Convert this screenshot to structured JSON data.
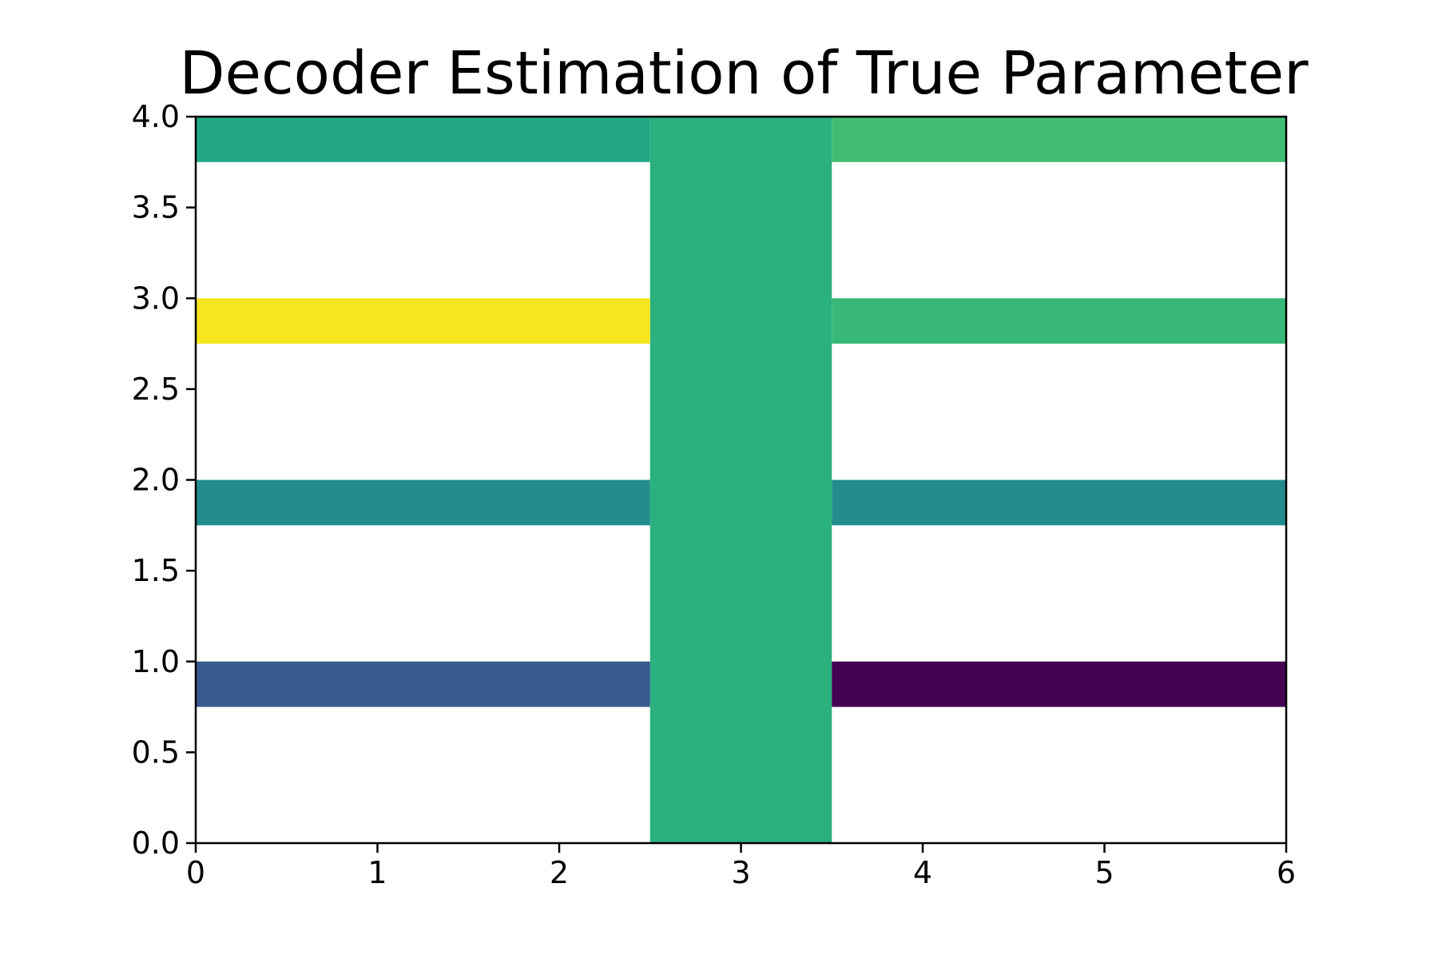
{
  "chart_data": {
    "type": "heatmap",
    "title": "Decoder Estimation of True Parameter",
    "xlabel": "",
    "ylabel": "",
    "xlim": [
      0,
      6
    ],
    "ylim": [
      0,
      4.0
    ],
    "x_ticks": [
      "0",
      "1",
      "2",
      "3",
      "4",
      "5",
      "6"
    ],
    "y_ticks": [
      "0.0",
      "0.5",
      "1.0",
      "1.5",
      "2.0",
      "2.5",
      "3.0",
      "3.5",
      "4.0"
    ],
    "grid": false,
    "legend": "none",
    "colormap": "viridis",
    "regions": [
      {
        "x": [
          2.5,
          3.5
        ],
        "y": [
          0.0,
          4.0
        ],
        "color": "#2bb07f"
      },
      {
        "x": [
          0,
          2.5
        ],
        "y": [
          3.75,
          4.0
        ],
        "color": "#22a884"
      },
      {
        "x": [
          3.5,
          6
        ],
        "y": [
          3.75,
          4.0
        ],
        "color": "#40bd72"
      },
      {
        "x": [
          0,
          2.5
        ],
        "y": [
          2.75,
          3.0
        ],
        "color": "#f5e61f"
      },
      {
        "x": [
          3.5,
          6
        ],
        "y": [
          2.75,
          3.0
        ],
        "color": "#37b878"
      },
      {
        "x": [
          0,
          2.5
        ],
        "y": [
          1.75,
          2.0
        ],
        "color": "#228c8d"
      },
      {
        "x": [
          3.5,
          6
        ],
        "y": [
          1.75,
          2.0
        ],
        "color": "#228c8d"
      },
      {
        "x": [
          0,
          2.5
        ],
        "y": [
          0.75,
          1.0
        ],
        "color": "#375b8d"
      },
      {
        "x": [
          3.5,
          6
        ],
        "y": [
          0.75,
          1.0
        ],
        "color": "#440154"
      }
    ]
  }
}
